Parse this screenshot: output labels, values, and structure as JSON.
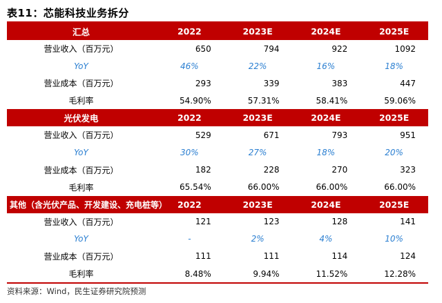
{
  "title": "表11：芯能科技业务拆分",
  "columns": [
    "2022",
    "2023E",
    "2024E",
    "2025E"
  ],
  "sections": [
    {
      "name": "汇总",
      "rows": [
        {
          "label": "营业收入（百万元）",
          "type": "normal",
          "values": [
            "650",
            "794",
            "922",
            "1092"
          ]
        },
        {
          "label": "YoY",
          "type": "yoy",
          "values": [
            "46%",
            "22%",
            "16%",
            "18%"
          ]
        },
        {
          "label": "营业成本（百万元）",
          "type": "normal",
          "values": [
            "293",
            "339",
            "383",
            "447"
          ]
        },
        {
          "label": "毛利率",
          "type": "margin",
          "values": [
            "54.90%",
            "57.31%",
            "58.41%",
            "59.06%"
          ]
        }
      ]
    },
    {
      "name": "光伏发电",
      "rows": [
        {
          "label": "营业收入（百万元）",
          "type": "normal",
          "values": [
            "529",
            "671",
            "793",
            "951"
          ]
        },
        {
          "label": "YoY",
          "type": "yoy",
          "values": [
            "30%",
            "27%",
            "18%",
            "20%"
          ]
        },
        {
          "label": "营业成本（百万元）",
          "type": "normal",
          "values": [
            "182",
            "228",
            "270",
            "323"
          ]
        },
        {
          "label": "毛利率",
          "type": "margin",
          "values": [
            "65.54%",
            "66.00%",
            "66.00%",
            "66.00%"
          ]
        }
      ]
    },
    {
      "name": "其他（含光伏产品、开发建设、充电桩等）",
      "rows": [
        {
          "label": "营业收入（百万元）",
          "type": "normal",
          "values": [
            "121",
            "123",
            "128",
            "141"
          ]
        },
        {
          "label": "YoY",
          "type": "yoy",
          "values": [
            "-",
            "2%",
            "4%",
            "10%"
          ]
        },
        {
          "label": "营业成本（百万元）",
          "type": "normal",
          "values": [
            "111",
            "111",
            "114",
            "124"
          ]
        },
        {
          "label": "毛利率",
          "type": "margin",
          "values": [
            "8.48%",
            "9.94%",
            "11.52%",
            "12.28%"
          ]
        }
      ]
    }
  ],
  "source": "资料来源：Wind，民生证券研究院预测",
  "colors": {
    "header_bg": "#c00000",
    "header_text": "#ffffff",
    "yoy_text": "#2b7fd1"
  }
}
